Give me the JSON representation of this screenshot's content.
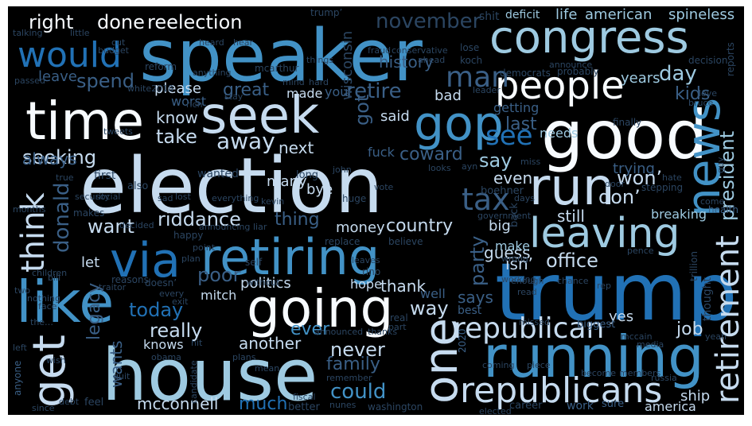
{
  "palette": [
    "#f7fbff",
    "#c6dbef",
    "#9ecae1",
    "#6baed6",
    "#4292c6",
    "#2171b5",
    "#3a5f86",
    "#2b4561"
  ],
  "words": {
    "speaker": "speaker",
    "election": "election",
    "trump": "trump",
    "house": "house",
    "good": "good",
    "running": "running",
    "retiring": "retiring",
    "congress": "congress",
    "going": "going",
    "time": "time",
    "seek": "seek",
    "like": "like",
    "people": "people",
    "run": "run",
    "news": "news",
    "gop": "gop",
    "via": "via",
    "leaving": "leaving",
    "retirement": "retirement",
    "one": "one",
    "republicans": "republicans",
    "get": "get",
    "would": "would",
    "republican": "republican",
    "think": "think",
    "right": "right",
    "done": "done",
    "reelection": "reelection",
    "november": "november",
    "life": "life",
    "american": "american",
    "spineless": "spineless",
    "deficit": "deficit",
    "man": "man",
    "spend": "spend",
    "retire": "retire",
    "history": "history",
    "see": "see",
    "say": "say",
    "tax": "tax",
    "day": "day",
    "president": "president",
    "kids": "kids",
    "know": "know",
    "take": "take",
    "away": "away",
    "next": "next",
    "seeking": "seeking",
    "always": "always",
    "donald": "donald",
    "want": "want",
    "riddance": "riddance",
    "thing": "thing",
    "money": "money",
    "country": "country",
    "party": "party",
    "coward": "coward",
    "said": "said",
    "got": "got",
    "great": "great",
    "please": "please",
    "made": "made",
    "bad": "bad",
    "worst": "worst",
    "years": "years",
    "last": "last",
    "getting": "getting",
    "needs": "needs",
    "even": "even",
    "trying": "trying",
    "won": "won’",
    "don": "don’",
    "still": "still",
    "breaking": "breaking",
    "office": "office",
    "isn": "isn’",
    "guess": "guess",
    "make": "make",
    "let": "let",
    "poor": "poor",
    "politics": "politics",
    "mitch": "mitch",
    "hope": "hope",
    "thank": "thank",
    "today": "today",
    "way": "way",
    "says": "says",
    "well": "well",
    "really": "really",
    "ever": "ever",
    "another": "another",
    "never": "never",
    "family": "family",
    "could": "could",
    "mcconnell": "mcconnell",
    "much": "much",
    "legacy": "legacy",
    "wants": "wants",
    "knows": "knows",
    "yes": "yes",
    "job": "job",
    "america": "america",
    "ship": "ship",
    "many": "many",
    "bye": "bye",
    "big": "big",
    "wisconsin": "wisconsin",
    "reform": "reform",
    "trump_apos": "trump’",
    "conservative": "conservative",
    "fraud": "fraud",
    "ahead": "ahead",
    "koch": "koch",
    "democrats": "democrats",
    "probably": "probably",
    "announce": "announce",
    "decision": "decision",
    "hear": "hear",
    "heard": "heard",
    "cut": "cut",
    "talking": "talking",
    "little": "little",
    "budget": "budget",
    "leave": "leave",
    "passed": "passed",
    "white2018": "white2018",
    "rich": "rich",
    "mccarthur": "mcarthur",
    "anything": "anything",
    "mind": "mind",
    "hard": "hard",
    "you": "you’",
    "leader": "leader",
    "love": "love",
    "bruce": "bruce",
    "months": "months",
    "makes": "makes",
    "decided": "decided",
    "happy": "happy",
    "announcing": "announcing",
    "liar": "liar",
    "replace": "replace",
    "believe": "believe",
    "government": "government",
    "back": "back",
    "door": "door",
    "hate": "hate",
    "come": "come",
    "health": "health",
    "trillion": "trillion",
    "pence": "pence",
    "children": "children",
    "point": "point",
    "self": "self",
    "plan": "plan",
    "reasons": "reasons",
    "doesn": "doesn’",
    "traitor": "traitor",
    "without": "without",
    "every": "every",
    "exit": "exit",
    "rino": "rino",
    "enough": "enough",
    "chance": "chance",
    "rep": "rep",
    "read": "read",
    "best": "best",
    "part": "part",
    "two": "two",
    "face": "face",
    "obama": "obama",
    "hit": "hit",
    "plans": "plans",
    "mean": "mean",
    "announced": "announced",
    "thanks": "thanks",
    "2020": "2020",
    "missed": "missed",
    "biggest": "biggest",
    "mccain": "mccain",
    "media": "media",
    "yeah": "yeah",
    "anyone": "anyone",
    "wish": "wish",
    "debt": "debt",
    "feel": "feel",
    "candidate": "candidate",
    "fiscal": "fiscal",
    "remember": "remember",
    "better": "better",
    "nunes": "nunes",
    "washington": "washington",
    "coming": "coming",
    "piece": "piece",
    "career": "career",
    "work": "work",
    "sure": "sure",
    "elected": "elected",
    "become": "become",
    "members": "members",
    "russia": "russia",
    "also": "also",
    "wanted": "wanted",
    "first": "first",
    "long": "long",
    "huge": "huge",
    "vote": "vote",
    "boehner": "boehner",
    "fuck": "fuck",
    "ayn": "ayn",
    "miss": "miss",
    "looks": "looks",
    "days": "days",
    "stepping": "stepping",
    "tweets": "tweets",
    "social": "social",
    "security": "security",
    "sad": "sad",
    "lost": "lost",
    "true": "true",
    "john": "john",
    "everything": "everything",
    "kevin": "kevin",
    "stay": "stay",
    "things": "things",
    "lose": "lose",
    "quit": "quit",
    "the": "the…",
    "reports": "reports",
    "since": "since",
    "nothing": "nothing",
    "bill": "bill",
    "working": "working",
    "wrong": "wrong",
    "leaves": "leaves",
    "real": "real",
    "shit": "shit",
    "left": "left",
    "guy": "guy",
    "thought": "thought",
    "finally": "finally"
  }
}
